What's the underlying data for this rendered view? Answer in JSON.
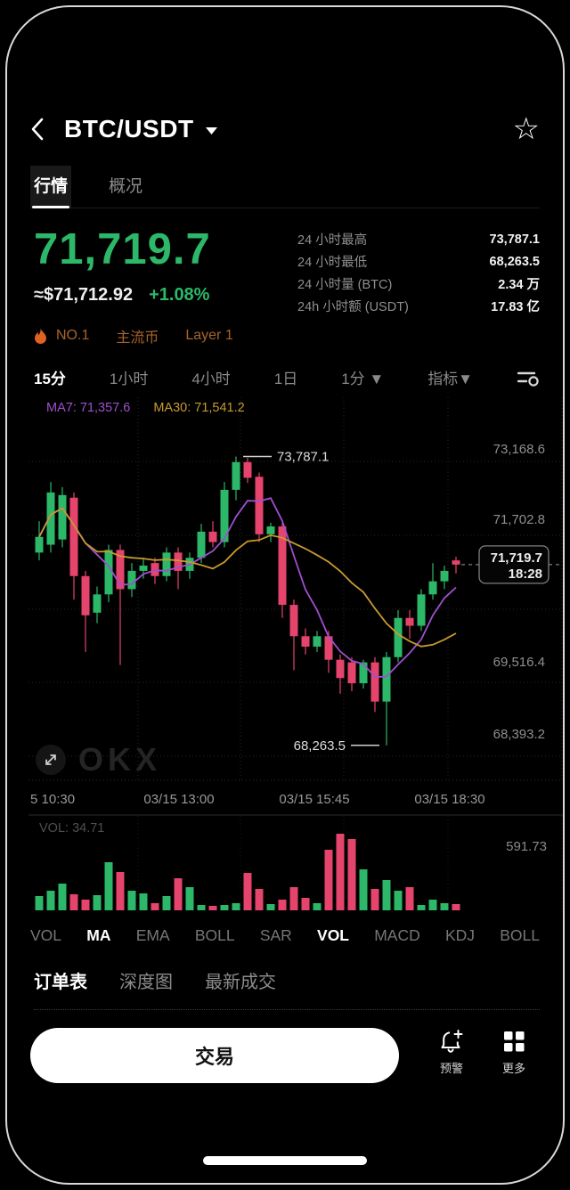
{
  "header": {
    "title": "BTC/USDT"
  },
  "page_tabs": {
    "market": "行情",
    "overview": "概况"
  },
  "price": {
    "last": "71,719.7",
    "fiat": "≈$71,712.92",
    "change": "+1.08%"
  },
  "badges": {
    "rank": "NO.1",
    "tag_mainstream": "主流币",
    "tag_layer": "Layer 1"
  },
  "stats": [
    {
      "label": "24 小时最高",
      "value": "73,787.1"
    },
    {
      "label": "24 小时最低",
      "value": "68,263.5"
    },
    {
      "label": "24 小时量 (BTC)",
      "value": "2.34 万"
    },
    {
      "label": "24h 小时额 (USDT)",
      "value": "17.83 亿"
    }
  ],
  "timeframes": {
    "m15": "15分",
    "h1": "1小时",
    "h4": "4小时",
    "d1": "1日",
    "m1": "1分 ▼",
    "indicator": "指标▼"
  },
  "chart": {
    "ma7_label": "MA7: 71,357.6",
    "ma30_label": "MA30: 71,541.2",
    "high_label": "73,787.1",
    "low_label": "68,263.5",
    "price_tag": {
      "price": "71,719.7",
      "time": "18:28"
    },
    "y_axis_labels": [
      "73,168.6",
      "71,702.8",
      "69,516.4",
      "68,393.2"
    ],
    "x_axis_labels": [
      "5 10:30",
      "03/15 13:00",
      "03/15 15:45",
      "03/15 18:30"
    ],
    "watermark": "OKX",
    "colors": {
      "up": "#2cb868",
      "down": "#e5446d",
      "ma7": "#a04fd0",
      "ma30": "#c99a2e"
    },
    "high_candle_index": 17,
    "low_candle_index": 30,
    "candles_ohlc": [
      [
        71950,
        72550,
        71800,
        72250
      ],
      [
        72100,
        73300,
        71950,
        73100
      ],
      [
        72200,
        73200,
        72050,
        73050
      ],
      [
        73000,
        73100,
        71050,
        71500
      ],
      [
        71500,
        71600,
        70050,
        70750
      ],
      [
        70800,
        71300,
        70600,
        71150
      ],
      [
        71150,
        72100,
        71000,
        72000
      ],
      [
        72000,
        72100,
        69800,
        71250
      ],
      [
        71250,
        71750,
        71100,
        71600
      ],
      [
        71600,
        71850,
        71450,
        71700
      ],
      [
        71750,
        71850,
        71350,
        71500
      ],
      [
        71500,
        72050,
        71400,
        71950
      ],
      [
        71950,
        72050,
        71250,
        71600
      ],
      [
        71600,
        71950,
        71450,
        71850
      ],
      [
        71850,
        72500,
        71750,
        72350
      ],
      [
        72350,
        72550,
        72050,
        72150
      ],
      [
        72150,
        73300,
        72050,
        73150
      ],
      [
        73150,
        73787.1,
        72950,
        73680
      ],
      [
        73680,
        73760,
        73280,
        73380
      ],
      [
        73400,
        73480,
        72150,
        72300
      ],
      [
        72300,
        72520,
        72150,
        72450
      ],
      [
        72450,
        72520,
        70700,
        70950
      ],
      [
        70950,
        71050,
        69700,
        70350
      ],
      [
        70350,
        70500,
        70000,
        70150
      ],
      [
        70150,
        70450,
        70050,
        70350
      ],
      [
        70350,
        70450,
        69650,
        69900
      ],
      [
        69900,
        70000,
        69250,
        69550
      ],
      [
        69850,
        69950,
        69300,
        69450
      ],
      [
        69450,
        69900,
        69350,
        69850
      ],
      [
        69850,
        69950,
        68900,
        69100
      ],
      [
        69100,
        70050,
        68263.5,
        69950
      ],
      [
        69950,
        70850,
        69850,
        70700
      ],
      [
        70700,
        70850,
        70300,
        70550
      ],
      [
        70550,
        71250,
        70450,
        71150
      ],
      [
        71150,
        71750,
        71050,
        71400
      ],
      [
        71400,
        71700,
        71250,
        71600
      ],
      [
        71800,
        71870,
        71550,
        71719.7
      ]
    ]
  },
  "volume": {
    "label": "VOL: 34.71",
    "axis_max": "591.73",
    "values": [
      80,
      110,
      150,
      90,
      60,
      85,
      270,
      215,
      110,
      95,
      40,
      80,
      180,
      130,
      30,
      25,
      30,
      40,
      210,
      120,
      35,
      60,
      130,
      70,
      40,
      340,
      430,
      400,
      230,
      120,
      170,
      110,
      130,
      30,
      60,
      40,
      35
    ]
  },
  "indicator_tabs": {
    "items": [
      "VOL",
      "MA",
      "EMA",
      "BOLL",
      "SAR",
      "VOL",
      "MACD",
      "KDJ",
      "BOLL"
    ],
    "active_indices": [
      1,
      5
    ]
  },
  "bottom_tabs": {
    "orderbook": "订单表",
    "depth": "深度图",
    "trades": "最新成交"
  },
  "action_bar": {
    "trade": "交易",
    "alert": "预警",
    "more": "更多"
  }
}
